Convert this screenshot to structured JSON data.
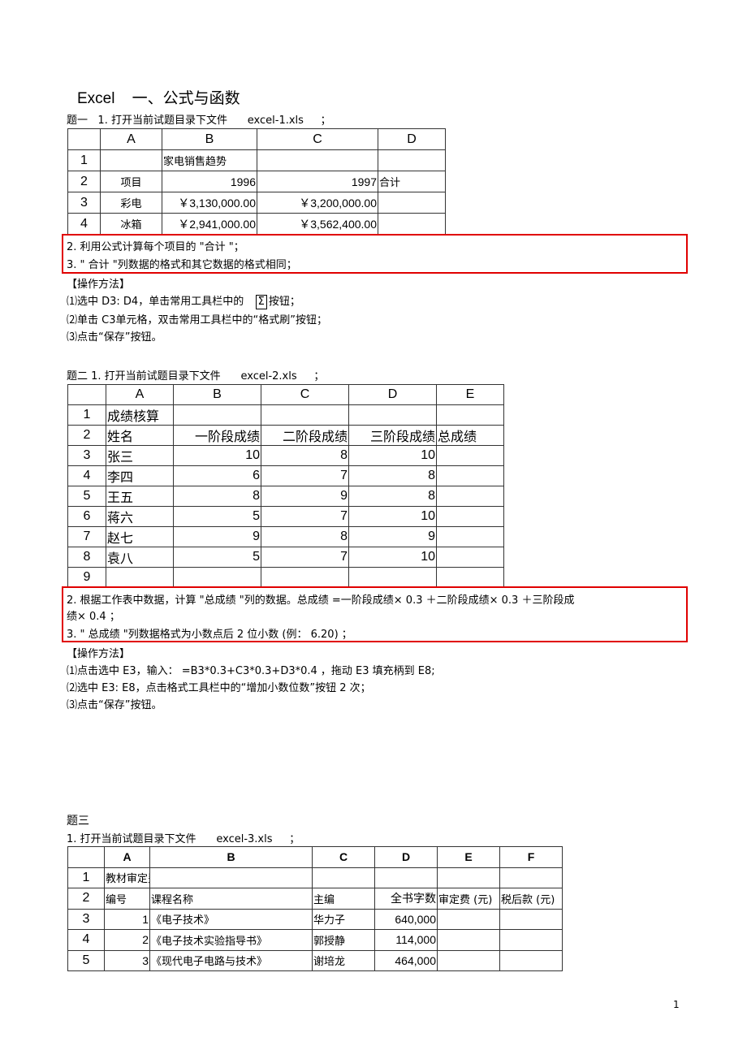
{
  "heading": {
    "prefix": "Excel",
    "title": "一、公式与函数"
  },
  "q1": {
    "label": "题一",
    "step1": "1.  打开当前试题目录下文件",
    "file": "excel-1.xls",
    "semi": "；",
    "table": {
      "columns": [
        "",
        "A",
        "B",
        "C",
        "D"
      ],
      "rows": [
        [
          "1",
          "",
          "家电销售趋势",
          "",
          ""
        ],
        [
          "2",
          "项目",
          "1996",
          "1997",
          "合计"
        ],
        [
          "3",
          "彩电",
          "￥3,130,000.00",
          "￥3,200,000.00",
          ""
        ],
        [
          "4",
          "冰箱",
          "￥2,941,000.00",
          "￥3,562,400.00",
          ""
        ]
      ]
    },
    "req2": "2.  利用公式计算每个项目的    \"合计 \"；",
    "req3": "3. \"   合计 \"列数据的格式和其它数据的格式相同；",
    "method_title": "【操作方法】",
    "m1a": "⑴选中  D3:  D4，单击常用工具栏中的",
    "m1_sigma": "Σ",
    "m1b": "按钮；",
    "m2": "⑵单击  C3单元格，双击常用工具栏中的“格式刷”按钮；",
    "m3": "⑶点击“保存”按钮。"
  },
  "q2": {
    "step1": "题二 1.  打开当前试题目录下文件",
    "file": "excel-2.xls",
    "semi": "；",
    "table": {
      "columns": [
        "",
        "A",
        "B",
        "C",
        "D",
        "E"
      ],
      "rows": [
        [
          "1",
          "成绩核算",
          "",
          "",
          "",
          ""
        ],
        [
          "2",
          "姓名",
          "一阶段成绩",
          "二阶段成绩",
          "三阶段成绩",
          "总成绩"
        ],
        [
          "3",
          "张三",
          "10",
          "8",
          "10",
          ""
        ],
        [
          "4",
          "李四",
          "6",
          "7",
          "8",
          ""
        ],
        [
          "5",
          "王五",
          "8",
          "9",
          "8",
          ""
        ],
        [
          "6",
          "蒋六",
          "5",
          "7",
          "10",
          ""
        ],
        [
          "7",
          "赵七",
          "9",
          "8",
          "9",
          ""
        ],
        [
          "8",
          "袁八",
          "5",
          "7",
          "10",
          ""
        ],
        [
          "9",
          "",
          "",
          "",
          "",
          ""
        ]
      ]
    },
    "req2a": "2.  根据工作表中数据，计算    \"总成绩 \"列的数据。总成绩   =一阶段成绩×  0.3 ＋二阶段成绩×  0.3 ＋三阶段成",
    "req2b": "绩× 0.4 ；",
    "req3": "3. \"  总成绩 \"列数据格式为小数点后    2 位小数 (例： 6.20) ；",
    "method_title": "【操作方法】",
    "m1": "⑴点击选中  E3，输入：  =B3*0.3+C3*0.3+D3*0.4   ，拖动  E3 填充柄到  E8;",
    "m2": "⑵选中  E3:  E8，点击格式工具栏中的“增加小数位数”按钮       2 次；",
    "m3": "⑶点击“保存”按钮。"
  },
  "q3": {
    "label": "题三",
    "step1": "1.  打开当前试题目录下文件",
    "file": "excel-3.xls",
    "semi": "；",
    "table": {
      "columns": [
        "",
        "A",
        "B",
        "C",
        "D",
        "E",
        "F"
      ],
      "rows": [
        [
          "1",
          "教材审定费统计表",
          "",
          "",
          "",
          "",
          ""
        ],
        [
          "2",
          "编号",
          "课程名称",
          "主编",
          "全书字数",
          "审定费 (元)",
          "税后款 (元)"
        ],
        [
          "3",
          "1",
          "《电子技术》",
          "华力子",
          "640,000",
          "",
          ""
        ],
        [
          "4",
          "2",
          "《电子技术实验指导书》",
          "郭授静",
          "114,000",
          "",
          ""
        ],
        [
          "5",
          "3",
          "《现代电子电路与技术》",
          "谢培龙",
          "464,000",
          "",
          ""
        ]
      ]
    }
  },
  "page_number": "1",
  "colors": {
    "highlight_border": "#e00000",
    "grid": "#333333"
  }
}
